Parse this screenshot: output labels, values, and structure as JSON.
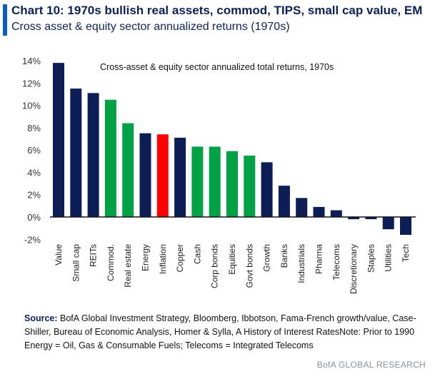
{
  "header": {
    "title": "Chart 10: 1970s bullish real assets, commod, TIPS, small cap value, EM",
    "subtitle": "Cross asset & equity sector annualized returns (1970s)"
  },
  "chart_data": {
    "type": "bar",
    "title": "Cross-asset & equity sector annualized total returns, 1970s",
    "xlabel": "",
    "ylabel": "",
    "ylim": [
      -2,
      14
    ],
    "yticks": [
      "-2%",
      "0%",
      "2%",
      "4%",
      "6%",
      "8%",
      "10%",
      "12%",
      "14%"
    ],
    "grid": false,
    "categories": [
      "Value",
      "Small cap",
      "REITs",
      "Commod.",
      "Real estate",
      "Energy",
      "Inflation",
      "Copper",
      "Cash",
      "Corp bonds",
      "Equities",
      "Govt bonds",
      "Growth",
      "Banks",
      "Industrials",
      "Pharma",
      "Telecoms",
      "Discretionary",
      "Staples",
      "Utilities",
      "Tech"
    ],
    "values": [
      13.8,
      11.5,
      11.1,
      10.5,
      8.4,
      7.5,
      7.4,
      7.1,
      6.3,
      6.3,
      5.9,
      5.5,
      4.9,
      2.8,
      1.7,
      0.9,
      0.6,
      -0.2,
      -0.2,
      -1.1,
      -1.6
    ],
    "bar_colors": [
      "#0c1e55",
      "#0c1e55",
      "#0c1e55",
      "#00a245",
      "#00a245",
      "#0c1e55",
      "#ff0000",
      "#0c1e55",
      "#00a245",
      "#00a245",
      "#00a245",
      "#00a245",
      "#0c1e55",
      "#0c1e55",
      "#0c1e55",
      "#0c1e55",
      "#0c1e55",
      "#0c1e55",
      "#0c1e55",
      "#0c1e55",
      "#0c1e55"
    ]
  },
  "footer": {
    "source_label": "Source:",
    "source_text": " BofA Global Investment Strategy, Bloomberg, Ibbotson,  Fama-French growth/value, Case-Shiller, Bureau of Economic Analysis, Homer & Sylla, A History of Interest RatesNote:  Prior to 1990 Energy = Oil, Gas & Consumable  Fuels; Telecoms = Integrated Telecoms",
    "brand": "BofA GLOBAL RESEARCH"
  }
}
